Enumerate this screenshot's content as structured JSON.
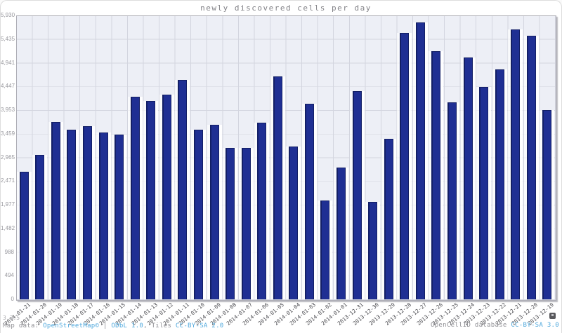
{
  "title": "newly discovered cells per day",
  "chart_data": {
    "type": "bar",
    "title": "newly discovered cells per day",
    "xlabel": "",
    "ylabel": "",
    "ylim": [
      0,
      5930
    ],
    "grid": true,
    "legend": "none",
    "plot_bg_color": "#edeff6",
    "gridline_color": "#d3d5df",
    "bar_color": "#1f2f93",
    "categories": [
      "2014-01-21",
      "2014-01-20",
      "2014-01-19",
      "2014-01-18",
      "2014-01-17",
      "2014-01-16",
      "2014-01-15",
      "2014-01-14",
      "2014-01-13",
      "2014-01-12",
      "2014-01-11",
      "2014-01-10",
      "2014-01-09",
      "2014-01-08",
      "2014-01-07",
      "2014-01-06",
      "2014-01-05",
      "2014-01-04",
      "2014-01-03",
      "2014-01-02",
      "2014-01-01",
      "2013-12-31",
      "2013-12-30",
      "2013-12-29",
      "2013-12-28",
      "2013-12-27",
      "2013-12-26",
      "2013-12-25",
      "2013-12-24",
      "2013-12-23",
      "2013-12-22",
      "2013-12-21",
      "2013-12-20",
      "2013-12-19"
    ],
    "values": [
      2660,
      3020,
      3700,
      3550,
      3620,
      3480,
      3440,
      4230,
      4150,
      4280,
      4580,
      3550,
      3650,
      3170,
      3160,
      3690,
      4660,
      3190,
      4080,
      2060,
      2760,
      4350,
      2040,
      3350,
      5560,
      5790,
      5190,
      4110,
      5050,
      4430,
      4810,
      5640,
      5510,
      3950
    ],
    "y_tick_values": [
      0,
      494,
      988,
      1482,
      1977,
      2471,
      2965,
      3459,
      3953,
      4447,
      4941,
      5435,
      5930
    ],
    "y_tick_labels": [
      "0",
      "494",
      "988",
      "1,482",
      "1,977",
      "2,471",
      "2,965",
      "3,459",
      "3,953",
      "4,447",
      "4,941",
      "5,435",
      "5,930"
    ]
  },
  "footer": {
    "version": "3.3.5",
    "map_data_prefix": "Map data: ",
    "osm_link": "OpenStreetMap©",
    "sep1": " | ",
    "odbl_link": "ODbL 1.0",
    "sep2": ", Tiles ",
    "cc2_link": "CC-BY-SA 2.0",
    "right_text": "OpenCellID database ",
    "cc3_link": "CC-BY-SA 3.0"
  },
  "colors": {
    "link": "#4da7dc",
    "bar": "#1f2f93",
    "title_text": "#828287",
    "y_tick_text": "#97979d",
    "x_tick_text": "#4a4a4f"
  },
  "icons": {
    "attribution_toggle": "small-dark-rounded-square"
  }
}
